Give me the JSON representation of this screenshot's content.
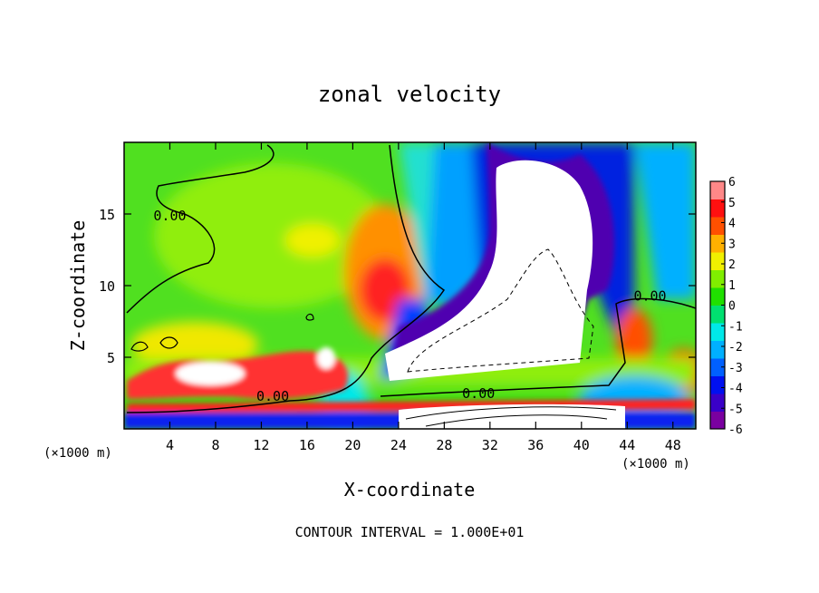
{
  "chart_data": {
    "type": "heatmap",
    "title": "zonal velocity",
    "xlabel": "X-coordinate",
    "ylabel": "Z-coordinate",
    "x_unit_left": "(×1000 m)",
    "x_unit_right": "(×1000 m)",
    "xlim": [
      0,
      50
    ],
    "ylim": [
      0,
      20
    ],
    "x_ticks": [
      4,
      8,
      12,
      16,
      20,
      24,
      28,
      32,
      36,
      40,
      44,
      48
    ],
    "y_ticks": [
      5,
      10,
      15
    ],
    "colorbar": {
      "min": -6,
      "max": 6,
      "ticks": [
        6,
        5,
        4,
        3,
        2,
        1,
        0,
        -1,
        -2,
        -3,
        -4,
        -5,
        -6
      ],
      "colors": [
        "#7a00a0",
        "#3a00c8",
        "#0010f0",
        "#0060ff",
        "#00b0ff",
        "#00e8e8",
        "#00e070",
        "#20e000",
        "#80ee00",
        "#f0f000",
        "#ffb000",
        "#ff5000",
        "#ff1010",
        "#ff8888"
      ]
    },
    "contour_labels": [
      {
        "text": "0.00",
        "x": 4,
        "y": 14.8
      },
      {
        "text": "0.00",
        "x": 13,
        "y": 2.2
      },
      {
        "text": "0.00",
        "x": 31,
        "y": 2.4
      },
      {
        "text": "0.00",
        "x": 46,
        "y": 9.2
      }
    ],
    "footer": "CONTOUR INTERVAL = 1.000E+01"
  }
}
